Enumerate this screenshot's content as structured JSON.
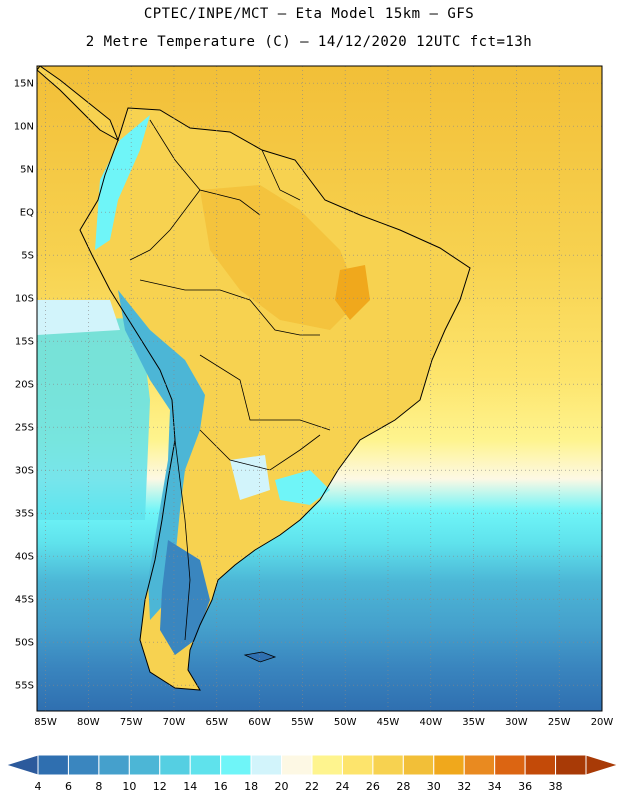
{
  "header": {
    "line1": "CPTEC/INPE/MCT –  Eta Model 15km – GFS",
    "line2": "2 Metre Temperature (C) – 14/12/2020 12UTC fct=13h"
  },
  "map": {
    "lat_labels": [
      "15N",
      "10N",
      "5N",
      "EQ",
      "5S",
      "10S",
      "15S",
      "20S",
      "25S",
      "30S",
      "35S",
      "40S",
      "45S",
      "50S",
      "55S"
    ],
    "lat_values": [
      15,
      10,
      5,
      0,
      -5,
      -10,
      -15,
      -20,
      -25,
      -30,
      -35,
      -40,
      -45,
      -50,
      -55
    ],
    "lon_labels": [
      "85W",
      "80W",
      "75W",
      "70W",
      "65W",
      "60W",
      "55W",
      "50W",
      "45W",
      "40W",
      "35W",
      "30W",
      "25W",
      "20W"
    ],
    "lon_values": [
      -85,
      -80,
      -75,
      -70,
      -65,
      -60,
      -55,
      -50,
      -45,
      -40,
      -35,
      -30,
      -25,
      -20
    ],
    "lat_range": [
      -58,
      17
    ],
    "lon_range": [
      -86,
      -20
    ],
    "grid": "dotted"
  },
  "colorbar": {
    "labels": [
      "4",
      "6",
      "8",
      "10",
      "12",
      "14",
      "16",
      "18",
      "20",
      "22",
      "24",
      "26",
      "28",
      "30",
      "32",
      "34",
      "36",
      "38"
    ],
    "colors": [
      "#2f6fb0",
      "#3a86bf",
      "#45a0cc",
      "#4cb6d6",
      "#55cfe2",
      "#5fe2ec",
      "#6ff5f8",
      "#d2f4fb",
      "#fdf8e4",
      "#fef48e",
      "#fde46c",
      "#f7d250",
      "#f2bf38",
      "#f0a81c",
      "#e98a20",
      "#dc6512",
      "#c34a08",
      "#a83a06"
    ],
    "low_arrow_color": "#2c5a9c",
    "high_arrow_color": "#a83a06"
  }
}
